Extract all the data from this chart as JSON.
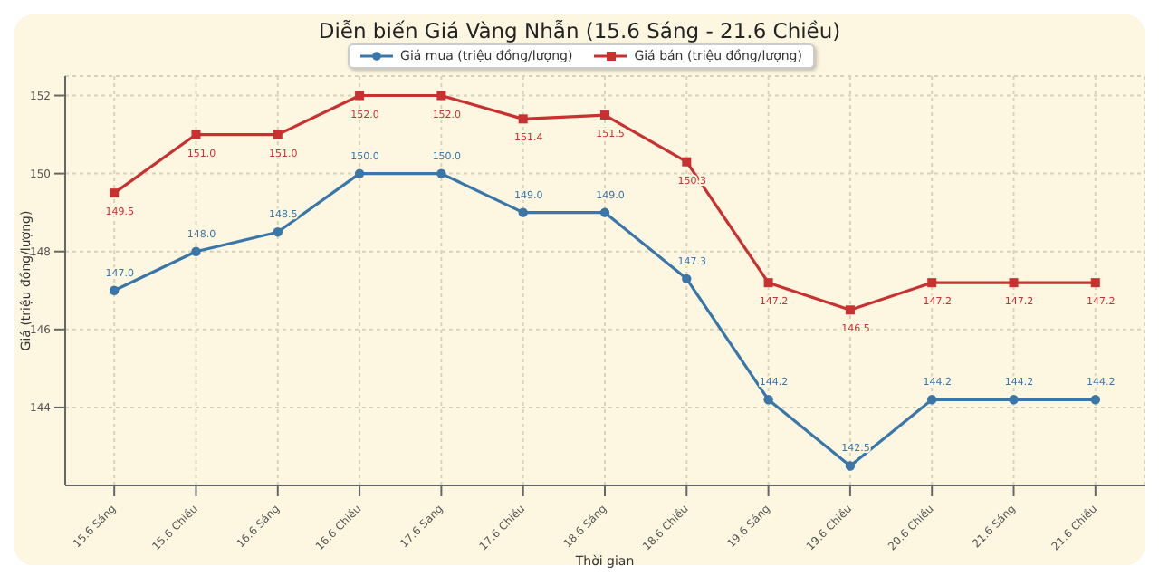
{
  "chart_data": {
    "type": "line",
    "title": "Diễn biến Giá Vàng Nhẫn (15.6 Sáng - 21.6 Chiều)",
    "xlabel": "Thời gian",
    "ylabel": "Giá (triệu đồng/lượng)",
    "categories": [
      "15.6 Sáng",
      "15.6 Chiều",
      "16.6 Sáng",
      "16.6 Chiều",
      "17.6 Sáng",
      "17.6 Chiều",
      "18.6 Sáng",
      "18.6 Chiều",
      "19.6 Sáng",
      "19.6 Chiều",
      "20.6 Chiều",
      "21.6 Sáng",
      "21.6 Chiều"
    ],
    "series": [
      {
        "name": "Giá mua (triệu đồng/lượng)",
        "color": "#3a76a8",
        "marker": "circle",
        "values": [
          147.0,
          148.0,
          148.5,
          150.0,
          150.0,
          149.0,
          149.0,
          147.3,
          144.2,
          142.5,
          144.2,
          144.2,
          144.2
        ],
        "value_labels": [
          "147.0",
          "148.0",
          "148.5",
          "150.0",
          "150.0",
          "149.0",
          "149.0",
          "147.3",
          "144.2",
          "142.5",
          "144.2",
          "144.2",
          "144.2"
        ]
      },
      {
        "name": "Giá bán (triệu đồng/lượng)",
        "color": "#c8312f",
        "marker": "square",
        "values": [
          149.5,
          151.0,
          151.0,
          152.0,
          152.0,
          151.4,
          151.5,
          150.3,
          147.2,
          146.5,
          147.2,
          147.2,
          147.2
        ],
        "value_labels": [
          "149.5",
          "151.0",
          "151.0",
          "152.0",
          "152.0",
          "151.4",
          "151.5",
          "150.3",
          "147.2",
          "146.5",
          "147.2",
          "147.2",
          "147.2"
        ]
      }
    ],
    "ylim": [
      142.0,
      152.5
    ],
    "yticks": [
      144,
      146,
      148,
      150,
      152
    ],
    "grid": true,
    "legend": "top",
    "line_style": "solid"
  }
}
